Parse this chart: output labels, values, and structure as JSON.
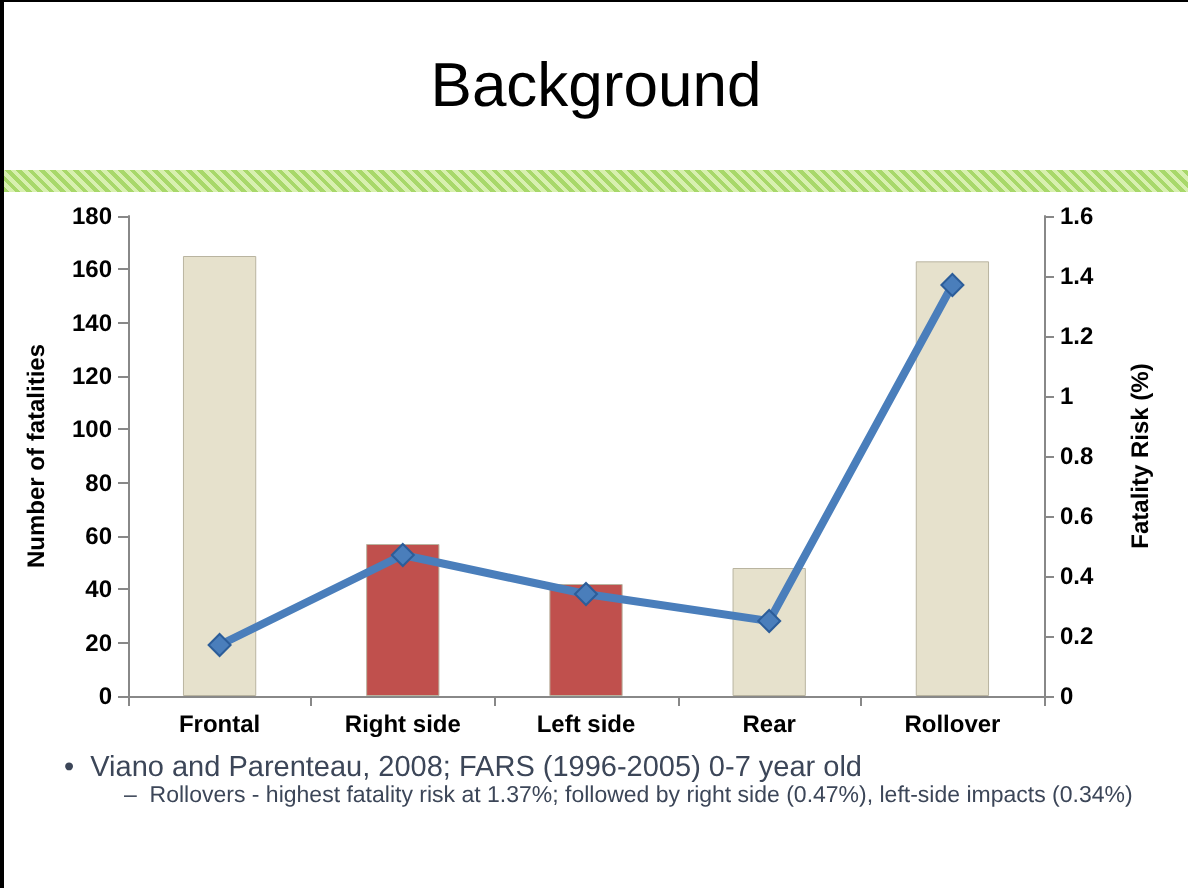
{
  "chart_data": {
    "type": "bar",
    "title": "Background",
    "categories": [
      "Frontal",
      "Right side",
      "Left side",
      "Rear",
      "Rollover"
    ],
    "series": [
      {
        "colors": [
          "#e6e1cc",
          "#c0504d",
          "#c0504d",
          "#e6e1cc",
          "#e6e1cc"
        ],
        "values": [
          165,
          57,
          42,
          48,
          163
        ]
      },
      {
        "type": "line",
        "axis": "y2",
        "color": "#4a7ebb",
        "values": [
          0.17,
          0.47,
          0.34,
          0.25,
          1.37
        ]
      }
    ],
    "ylabel": "Number of fatalities",
    "y2label": "Fatality Risk (%)",
    "ylim": [
      0,
      180
    ],
    "yticks": [
      0,
      20,
      40,
      60,
      80,
      100,
      120,
      140,
      160,
      180
    ],
    "y2lim": [
      0,
      1.6
    ],
    "y2ticks": [
      0,
      0.2,
      0.4,
      0.6,
      0.8,
      1,
      1.2,
      1.4,
      1.6
    ],
    "marker": "diamond",
    "grid": false,
    "annotations": [
      "•  Viano and Parenteau, 2008; FARS (1996-2005) 0-7 year old",
      "–  Rollovers - highest fatality risk at 1.37%; followed by right side (0.47%), left-side impacts (0.34%)"
    ]
  }
}
